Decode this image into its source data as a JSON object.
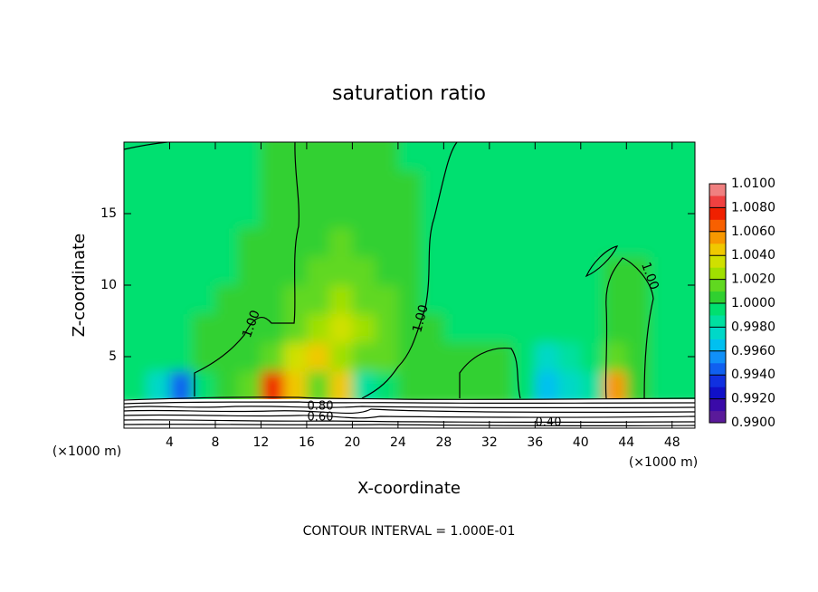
{
  "chart_data": {
    "type": "heatmap",
    "title": "saturation ratio",
    "x_label": "X-coordinate",
    "y_label": "Z-coordinate",
    "x_unit_left": "(×1000 m)",
    "x_unit_right": "(×1000 m)",
    "footer": "CONTOUR INTERVAL = 1.000E-01",
    "xlim": [
      0,
      50
    ],
    "ylim": [
      0,
      20
    ],
    "xticks": [
      4,
      8,
      12,
      16,
      20,
      24,
      28,
      32,
      36,
      40,
      44,
      48
    ],
    "yticks": [
      5,
      10,
      15
    ],
    "x": [
      1,
      3,
      5,
      7,
      9,
      11,
      13,
      15,
      17,
      19,
      21,
      23,
      25,
      27,
      29,
      31,
      33,
      35,
      37,
      39,
      41,
      43,
      45,
      47,
      49
    ],
    "z": [
      3,
      5,
      7,
      9,
      11,
      13,
      15,
      17,
      19
    ],
    "values": [
      [
        0.999,
        0.9975,
        0.9945,
        0.9995,
        1.0003,
        1.001,
        1.0075,
        1.004,
        1.0012,
        1.0045,
        0.9985,
        0.999,
        1.0005,
        1.0003,
        1.0003,
        1.0003,
        1.0003,
        0.999,
        0.9965,
        0.9975,
        0.9985,
        1.0055,
        1.0,
        0.999,
        0.999
      ],
      [
        0.9995,
        0.999,
        0.999,
        1.0003,
        1.0005,
        1.0008,
        1.0015,
        1.0035,
        1.004,
        1.0025,
        1.0015,
        1.001,
        1.0008,
        1.0003,
        1.0003,
        1.0005,
        1.0003,
        0.999,
        0.9975,
        0.998,
        0.999,
        1.001,
        1.0,
        0.9995,
        0.9995
      ],
      [
        0.9995,
        0.9995,
        0.9995,
        1.0,
        1.0003,
        1.0005,
        1.0008,
        1.0012,
        1.0025,
        1.003,
        1.0022,
        1.0012,
        1.0005,
        1.0,
        0.9995,
        0.9995,
        0.9995,
        0.9993,
        0.999,
        0.9993,
        0.9995,
        1.0003,
        1.0,
        0.9995,
        0.9995
      ],
      [
        0.9995,
        0.9993,
        0.9993,
        0.9995,
        1.0,
        1.0003,
        1.0005,
        1.001,
        1.0018,
        1.0022,
        1.0018,
        1.001,
        1.0003,
        0.9995,
        0.9993,
        0.9993,
        0.9993,
        0.9993,
        0.9993,
        0.9993,
        0.9995,
        1.0003,
        1.0,
        0.9995,
        0.9995
      ],
      [
        0.9995,
        0.9993,
        0.9993,
        0.9995,
        0.9998,
        1.0,
        1.0003,
        1.0008,
        1.0012,
        1.0015,
        1.0012,
        1.0008,
        1.0003,
        0.9995,
        0.9993,
        0.9993,
        0.9993,
        0.9993,
        0.9993,
        0.9993,
        0.9995,
        1.0003,
        1.0,
        0.9995,
        0.9995
      ],
      [
        0.9995,
        0.9995,
        0.9995,
        0.9995,
        0.9998,
        1.0,
        1.0003,
        1.0005,
        1.0008,
        1.001,
        1.0008,
        1.0005,
        1.0,
        0.9995,
        0.9995,
        0.9995,
        0.9995,
        0.9995,
        0.9995,
        0.9995,
        0.9995,
        0.9998,
        0.9998,
        0.9995,
        0.9995
      ],
      [
        0.9995,
        0.9995,
        0.9995,
        0.9995,
        0.9995,
        0.9998,
        1.0,
        1.0003,
        1.0005,
        1.0005,
        1.0005,
        1.0003,
        1.0,
        0.9998,
        0.9995,
        0.9995,
        0.9995,
        0.9995,
        0.9995,
        0.9995,
        0.9995,
        0.9995,
        0.9995,
        0.9995,
        0.9995
      ],
      [
        0.9995,
        0.9995,
        0.9995,
        0.9995,
        0.9995,
        0.9998,
        1.0,
        1.0,
        1.0003,
        1.0003,
        1.0003,
        1.0,
        1.0,
        0.9998,
        0.9995,
        0.9995,
        0.9995,
        0.9995,
        0.9995,
        0.9995,
        0.9995,
        0.9995,
        0.9995,
        0.9995,
        0.9995
      ],
      [
        0.9995,
        0.9995,
        0.9995,
        0.9995,
        0.9995,
        0.9998,
        1.0,
        1.0,
        1.0,
        1.0,
        1.0,
        1.0,
        0.9998,
        0.9998,
        0.9995,
        0.9995,
        0.9995,
        0.9995,
        0.9995,
        0.9995,
        0.9995,
        0.9995,
        0.9995,
        0.9995,
        0.9995
      ]
    ],
    "color_levels": [
      0.99,
      0.991,
      0.992,
      0.993,
      0.994,
      0.995,
      0.996,
      0.997,
      0.998,
      0.999,
      1.0,
      1.001,
      1.002,
      1.003,
      1.004,
      1.005,
      1.006,
      1.007,
      1.008,
      1.009,
      1.01
    ],
    "colors": [
      "#5a1a9a",
      "#3a0aa8",
      "#1010c8",
      "#1030e0",
      "#1060f0",
      "#1090f8",
      "#00c0f0",
      "#00d8c8",
      "#00e0a0",
      "#00e070",
      "#30d030",
      "#60d820",
      "#a0e000",
      "#d0e000",
      "#f0c800",
      "#f89800",
      "#f86000",
      "#f02000",
      "#f04040",
      "#f08080"
    ],
    "colorbar_ticks": [
      {
        "value": 0.99,
        "label": "0.9900"
      },
      {
        "value": 0.992,
        "label": "0.9920"
      },
      {
        "value": 0.994,
        "label": "0.9940"
      },
      {
        "value": 0.996,
        "label": "0.9960"
      },
      {
        "value": 0.998,
        "label": "0.9980"
      },
      {
        "value": 1.0,
        "label": "1.0000"
      },
      {
        "value": 1.002,
        "label": "1.0020"
      },
      {
        "value": 1.004,
        "label": "1.0040"
      },
      {
        "value": 1.006,
        "label": "1.0060"
      },
      {
        "value": 1.008,
        "label": "1.0080"
      },
      {
        "value": 1.01,
        "label": "1.0100"
      }
    ],
    "contour_labels": [
      {
        "value": 1.0,
        "label": "1.00"
      },
      {
        "value": 1.0,
        "label": "1.00"
      },
      {
        "value": 1.0,
        "label": "1.00"
      },
      {
        "value": 0.8,
        "label": "0.80"
      },
      {
        "value": 0.6,
        "label": "0.60"
      },
      {
        "value": 0.4,
        "label": "0.40"
      }
    ]
  }
}
